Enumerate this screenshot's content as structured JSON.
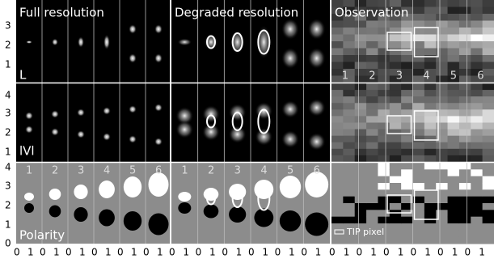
{
  "columns": [
    "Full resolution",
    "Degraded resolution",
    "Observation"
  ],
  "rows": [
    "L",
    "lVl",
    "Polarity"
  ],
  "panel_numbers": [
    "1",
    "2",
    "3",
    "4",
    "5",
    "6"
  ],
  "y_ticks": [
    [
      "3",
      "2",
      "1"
    ],
    [
      "4",
      "3",
      "2",
      "1"
    ],
    [
      "4",
      "3",
      "2",
      "1",
      "0"
    ]
  ],
  "x_ticks": [
    "0",
    "1"
  ],
  "legend": "TIP pixel"
}
